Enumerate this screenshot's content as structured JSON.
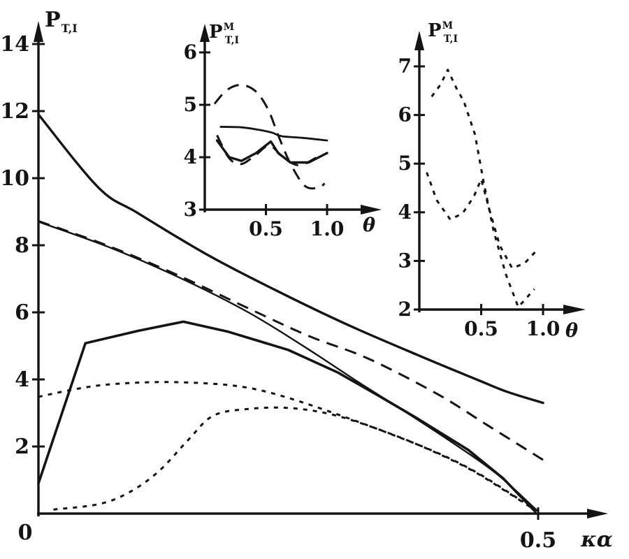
{
  "figure": {
    "background": "#ffffff",
    "ink": "#141414"
  },
  "chart_data": [
    {
      "id": "main",
      "type": "line",
      "title": "",
      "ylabel": {
        "base": "P",
        "sup": "",
        "sub": "T,I"
      },
      "xlabel": "κα",
      "origin_label": "0",
      "xlim": [
        0,
        0.57
      ],
      "ylim": [
        0,
        14.6
      ],
      "grid": false,
      "legend": "none",
      "y_ticks": [
        {
          "v": 2,
          "label": "2"
        },
        {
          "v": 4,
          "label": "4"
        },
        {
          "v": 6,
          "label": "6"
        },
        {
          "v": 8,
          "label": "8"
        },
        {
          "v": 10,
          "label": "10"
        },
        {
          "v": 12,
          "label": "12"
        },
        {
          "v": 14,
          "label": "14"
        }
      ],
      "x_ticks": [
        {
          "v": 0.5,
          "label": "0.5"
        }
      ],
      "series": [
        {
          "name": "upper-solid-curve",
          "style": "solid",
          "width": 3.4,
          "smooth": true,
          "points": [
            [
              0,
              11.9
            ],
            [
              0.06,
              9.72
            ],
            [
              0.1,
              8.95
            ],
            [
              0.17,
              7.7
            ],
            [
              0.24,
              6.62
            ],
            [
              0.31,
              5.62
            ],
            [
              0.38,
              4.72
            ],
            [
              0.44,
              3.98
            ],
            [
              0.47,
              3.62
            ],
            [
              0.505,
              3.3
            ]
          ]
        },
        {
          "name": "mid-solid-curve",
          "style": "solid",
          "width": 2.4,
          "smooth": true,
          "points": [
            [
              0,
              8.7
            ],
            [
              0.07,
              7.95
            ],
            [
              0.14,
              7.05
            ],
            [
              0.21,
              6.0
            ],
            [
              0.27,
              4.9
            ],
            [
              0.32,
              3.92
            ],
            [
              0.37,
              2.98
            ],
            [
              0.42,
              2.0
            ],
            [
              0.46,
              1.15
            ],
            [
              0.5,
              0.06
            ]
          ]
        },
        {
          "name": "long-dash-curve",
          "style": "long-dash",
          "width": 3.0,
          "smooth": true,
          "points": [
            [
              0,
              8.72
            ],
            [
              0.07,
              7.98
            ],
            [
              0.14,
              7.1
            ],
            [
              0.21,
              6.12
            ],
            [
              0.27,
              5.3
            ],
            [
              0.33,
              4.62
            ],
            [
              0.4,
              3.55
            ],
            [
              0.45,
              2.62
            ],
            [
              0.505,
              1.6
            ]
          ]
        },
        {
          "name": "hump-solid-curve",
          "style": "solid",
          "width": 3.6,
          "smooth": false,
          "points": [
            [
              0,
              0.9
            ],
            [
              0.047,
              5.08
            ],
            [
              0.1,
              5.45
            ],
            [
              0.145,
              5.72
            ],
            [
              0.19,
              5.42
            ],
            [
              0.25,
              4.88
            ],
            [
              0.3,
              4.2
            ],
            [
              0.34,
              3.52
            ],
            [
              0.38,
              2.82
            ],
            [
              0.43,
              1.9
            ],
            [
              0.465,
              1.05
            ],
            [
              0.497,
              0.06
            ]
          ]
        },
        {
          "name": "upper-short-dash-curve",
          "style": "short-dash",
          "width": 3.0,
          "smooth": true,
          "points": [
            [
              0,
              3.48
            ],
            [
              0.035,
              3.7
            ],
            [
              0.07,
              3.85
            ],
            [
              0.12,
              3.92
            ],
            [
              0.17,
              3.88
            ],
            [
              0.21,
              3.75
            ],
            [
              0.25,
              3.45
            ],
            [
              0.3,
              2.95
            ],
            [
              0.35,
              2.4
            ],
            [
              0.4,
              1.8
            ],
            [
              0.44,
              1.2
            ],
            [
              0.485,
              0.35
            ]
          ]
        },
        {
          "name": "lower-short-dash-curve",
          "style": "short-dash",
          "width": 3.0,
          "smooth": true,
          "points": [
            [
              0.015,
              0.12
            ],
            [
              0.06,
              0.28
            ],
            [
              0.09,
              0.62
            ],
            [
              0.12,
              1.25
            ],
            [
              0.15,
              2.2
            ],
            [
              0.175,
              2.92
            ],
            [
              0.21,
              3.12
            ],
            [
              0.25,
              3.15
            ],
            [
              0.29,
              2.98
            ],
            [
              0.33,
              2.62
            ],
            [
              0.38,
              2.05
            ],
            [
              0.43,
              1.35
            ],
            [
              0.47,
              0.62
            ],
            [
              0.497,
              0.1
            ]
          ]
        }
      ]
    },
    {
      "id": "inset1",
      "type": "line",
      "title": "",
      "ylabel": {
        "base": "P",
        "sup": "M",
        "sub": "T,I"
      },
      "xlabel": "θ",
      "origin_label": "",
      "xlim": [
        0,
        1.15
      ],
      "ylim": [
        3,
        6.4
      ],
      "grid": false,
      "legend": "none",
      "y_ticks": [
        {
          "v": 3,
          "label": "3"
        },
        {
          "v": 4,
          "label": "4"
        },
        {
          "v": 5,
          "label": "5"
        },
        {
          "v": 6,
          "label": "6"
        }
      ],
      "x_ticks": [
        {
          "v": 0.5,
          "label": "0.5"
        },
        {
          "v": 1.0,
          "label": "1.0"
        }
      ],
      "series": [
        {
          "name": "inset1-flat-solid-curve",
          "style": "solid",
          "width": 2.8,
          "smooth": true,
          "points": [
            [
              0.13,
              4.58
            ],
            [
              0.3,
              4.57
            ],
            [
              0.45,
              4.52
            ],
            [
              0.55,
              4.47
            ],
            [
              0.63,
              4.4
            ],
            [
              0.8,
              4.37
            ],
            [
              1.0,
              4.32
            ]
          ]
        },
        {
          "name": "inset1-w-solid-curve",
          "style": "solid",
          "width": 3.4,
          "smooth": false,
          "points": [
            [
              0.1,
              4.32
            ],
            [
              0.2,
              4.0
            ],
            [
              0.3,
              3.93
            ],
            [
              0.42,
              4.08
            ],
            [
              0.54,
              4.3
            ],
            [
              0.6,
              4.08
            ],
            [
              0.7,
              3.9
            ],
            [
              0.85,
              3.9
            ],
            [
              1.0,
              4.08
            ]
          ]
        },
        {
          "name": "inset1-upper-dash-curve",
          "style": "long-dash",
          "width": 3.0,
          "smooth": true,
          "points": [
            [
              0.08,
              5.02
            ],
            [
              0.18,
              5.28
            ],
            [
              0.3,
              5.38
            ],
            [
              0.42,
              5.25
            ],
            [
              0.52,
              4.9
            ],
            [
              0.6,
              4.42
            ],
            [
              0.7,
              3.88
            ],
            [
              0.82,
              3.45
            ],
            [
              0.93,
              3.42
            ],
            [
              0.98,
              3.5
            ]
          ]
        },
        {
          "name": "inset1-lower-dash-curve",
          "style": "long-dash",
          "width": 3.0,
          "smooth": true,
          "points": [
            [
              0.1,
              4.42
            ],
            [
              0.2,
              3.98
            ],
            [
              0.3,
              3.87
            ],
            [
              0.42,
              4.05
            ],
            [
              0.53,
              4.22
            ],
            [
              0.65,
              3.98
            ],
            [
              0.78,
              3.85
            ],
            [
              0.95,
              4.05
            ]
          ]
        }
      ]
    },
    {
      "id": "inset2",
      "type": "line",
      "title": "",
      "ylabel": {
        "base": "P",
        "sup": "M",
        "sub": "T,I"
      },
      "xlabel": "θ",
      "origin_label": "",
      "xlim": [
        0,
        1.25
      ],
      "ylim": [
        2,
        7.3
      ],
      "grid": false,
      "legend": "none",
      "y_ticks": [
        {
          "v": 2,
          "label": "2"
        },
        {
          "v": 3,
          "label": "3"
        },
        {
          "v": 4,
          "label": "4"
        },
        {
          "v": 5,
          "label": "5"
        },
        {
          "v": 6,
          "label": "6"
        },
        {
          "v": 7,
          "label": "7"
        }
      ],
      "x_ticks": [
        {
          "v": 0.5,
          "label": "0.5"
        },
        {
          "v": 1.0,
          "label": "1.0"
        }
      ],
      "series": [
        {
          "name": "inset2-tall-dotted-curve",
          "style": "short-dash",
          "width": 3.0,
          "smooth": false,
          "points": [
            [
              0.1,
              6.38
            ],
            [
              0.17,
              6.62
            ],
            [
              0.23,
              6.93
            ],
            [
              0.3,
              6.55
            ],
            [
              0.36,
              6.28
            ],
            [
              0.45,
              5.6
            ],
            [
              0.52,
              4.62
            ],
            [
              0.6,
              3.62
            ],
            [
              0.7,
              2.72
            ],
            [
              0.8,
              2.05
            ],
            [
              0.93,
              2.42
            ]
          ]
        },
        {
          "name": "inset2-low-dotted-curve",
          "style": "short-dash",
          "width": 3.0,
          "smooth": false,
          "points": [
            [
              0.06,
              4.82
            ],
            [
              0.14,
              4.25
            ],
            [
              0.25,
              3.85
            ],
            [
              0.35,
              3.98
            ],
            [
              0.44,
              4.32
            ],
            [
              0.5,
              4.68
            ],
            [
              0.57,
              4.02
            ],
            [
              0.65,
              3.32
            ],
            [
              0.75,
              2.85
            ],
            [
              0.85,
              2.95
            ],
            [
              0.95,
              3.22
            ]
          ]
        }
      ]
    }
  ]
}
